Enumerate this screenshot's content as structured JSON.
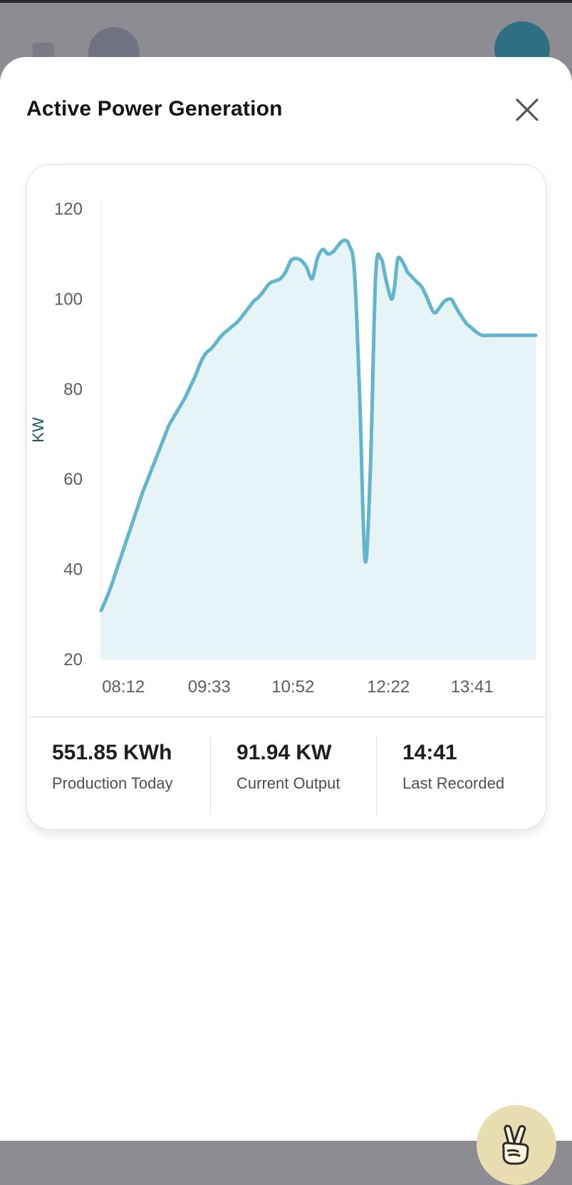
{
  "sheet": {
    "title": "Active Power Generation"
  },
  "icons": {
    "close": "close-icon",
    "fab": "peace-hand-icon"
  },
  "colors": {
    "line": "#63b5cd",
    "area": "#e6f3f7",
    "axis_label": "#1d5a68"
  },
  "chart_data": {
    "type": "area",
    "ylabel": "KW",
    "ylim": [
      20,
      120
    ],
    "yticks": [
      120,
      100,
      80,
      60,
      40,
      20
    ],
    "xtick_labels": [
      "08:12",
      "09:33",
      "10:52",
      "12:22",
      "13:41"
    ],
    "xlim": [
      "07:51",
      "14:41"
    ],
    "grid": false,
    "series": [
      {
        "x": [
          "07:51",
          "07:55",
          "08:00",
          "08:05",
          "08:10",
          "08:15",
          "08:20",
          "08:25",
          "08:30",
          "08:35",
          "08:40",
          "08:45",
          "08:50",
          "08:55",
          "09:00",
          "09:05",
          "09:10",
          "09:15",
          "09:20",
          "09:25",
          "09:30",
          "09:35",
          "09:40",
          "09:45",
          "09:50",
          "09:55",
          "10:00",
          "10:05",
          "10:10",
          "10:15",
          "10:20",
          "10:25",
          "10:30",
          "10:35",
          "10:40",
          "10:45",
          "10:50",
          "10:55",
          "11:00",
          "11:05",
          "11:10",
          "11:15",
          "11:20",
          "11:25",
          "11:30",
          "11:35",
          "11:40",
          "11:45",
          "11:50",
          "11:55",
          "12:00",
          "12:05",
          "12:10",
          "12:15",
          "12:20",
          "12:25",
          "12:28",
          "12:31",
          "12:36",
          "12:40",
          "12:44",
          "12:48",
          "12:54",
          "12:59",
          "13:05",
          "13:10",
          "13:15",
          "13:21",
          "13:25",
          "13:30",
          "13:36",
          "13:41",
          "13:46",
          "13:51",
          "13:57",
          "14:01",
          "14:05",
          "14:09",
          "14:14",
          "14:20",
          "14:25",
          "14:30",
          "14:35",
          "14:41"
        ],
        "values": [
          30.9,
          33,
          36,
          39.5,
          43,
          46.5,
          50,
          53.5,
          57,
          60,
          63,
          66,
          69,
          72,
          74,
          76,
          78,
          80.5,
          83,
          86,
          88,
          89,
          90.5,
          92,
          93,
          94,
          95,
          96.5,
          98,
          99.5,
          100.5,
          102,
          103.5,
          104,
          104.5,
          106,
          108.5,
          109,
          108.5,
          107,
          104.5,
          109,
          111,
          110,
          110.5,
          112,
          113,
          112,
          106,
          78,
          42,
          62,
          105,
          109,
          104,
          100,
          103,
          109,
          108,
          106,
          105,
          104,
          102.5,
          100,
          97,
          98,
          99.5,
          100,
          98.5,
          96.5,
          94.5,
          93.5,
          92.5,
          91.94,
          91.94,
          91.94,
          91.94,
          91.94,
          91.94,
          91.94,
          91.94,
          91.94,
          91.94,
          91.94
        ]
      }
    ]
  },
  "stats": [
    {
      "value": "551.85 KWh",
      "label": "Production Today"
    },
    {
      "value": "91.94 KW",
      "label": "Current Output"
    },
    {
      "value": "14:41",
      "label": "Last Recorded"
    }
  ]
}
